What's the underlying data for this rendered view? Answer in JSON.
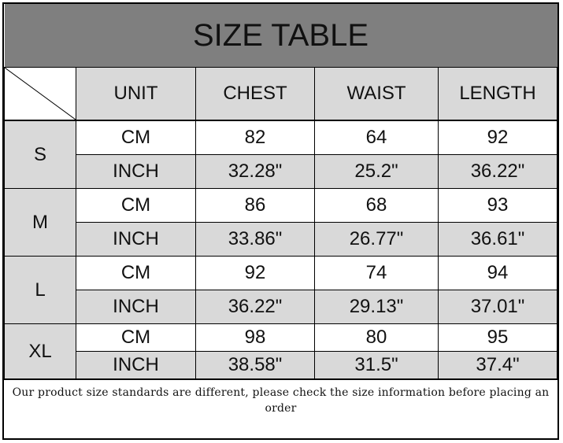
{
  "title": "SIZE TABLE",
  "headers": [
    "UNIT",
    "CHEST",
    "WAIST",
    "LENGTH"
  ],
  "sizes": [
    {
      "size": "S",
      "cm": {
        "unit": "CM",
        "chest": "82",
        "waist": "64",
        "length": "92"
      },
      "inch": {
        "unit": "INCH",
        "chest": "32.28\"",
        "waist": "25.2\"",
        "length": "36.22\""
      }
    },
    {
      "size": "M",
      "cm": {
        "unit": "CM",
        "chest": "86",
        "waist": "68",
        "length": "93"
      },
      "inch": {
        "unit": "INCH",
        "chest": "33.86\"",
        "waist": "26.77\"",
        "length": "36.61\""
      }
    },
    {
      "size": "L",
      "cm": {
        "unit": "CM",
        "chest": "92",
        "waist": "74",
        "length": "94"
      },
      "inch": {
        "unit": "INCH",
        "chest": "36.22\"",
        "waist": "29.13\"",
        "length": "37.01\""
      }
    },
    {
      "size": "XL",
      "cm": {
        "unit": "CM",
        "chest": "98",
        "waist": "80",
        "length": "95"
      },
      "inch": {
        "unit": "INCH",
        "chest": "38.58\"",
        "waist": "31.5\"",
        "length": "37.4\""
      }
    }
  ],
  "footer_note": "Our product size standards are different, please check the size information before placing an order",
  "colors": {
    "title_bg": "#7f7f7f",
    "cell_gray": "#d9d9d9",
    "border": "#000000"
  }
}
